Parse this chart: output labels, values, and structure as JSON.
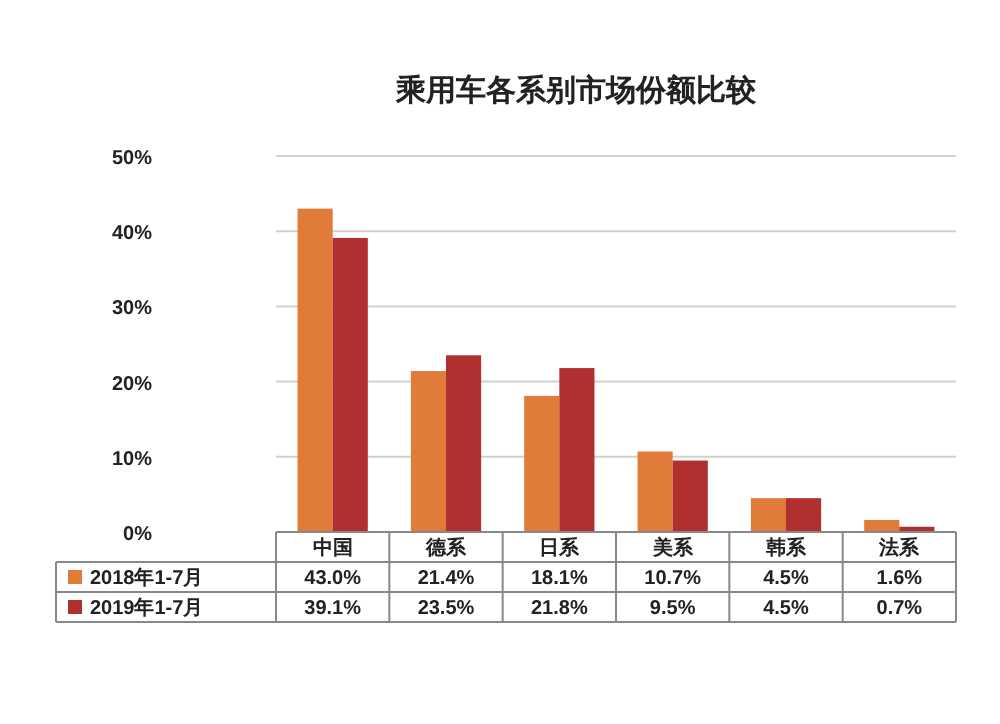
{
  "chart_data": {
    "type": "bar",
    "title": "乘用车各系别市场份额比较",
    "categories": [
      "中国",
      "德系",
      "日系",
      "美系",
      "韩系",
      "法系"
    ],
    "series": [
      {
        "name": "2018年1-7月",
        "color": "#e07b39",
        "values": [
          43.0,
          21.4,
          18.1,
          10.7,
          4.5,
          1.6
        ],
        "value_labels": [
          "43.0%",
          "21.4%",
          "18.1%",
          "10.7%",
          "4.5%",
          "1.6%"
        ]
      },
      {
        "name": "2019年1-7月",
        "color": "#b03030",
        "values": [
          39.1,
          23.5,
          21.8,
          9.5,
          4.5,
          0.7
        ],
        "value_labels": [
          "39.1%",
          "23.5%",
          "21.8%",
          "9.5%",
          "4.5%",
          "0.7%"
        ]
      }
    ],
    "ylim": [
      0,
      50
    ],
    "yticks": [
      {
        "value": 0,
        "label": "0%"
      },
      {
        "value": 10,
        "label": "10%"
      },
      {
        "value": 20,
        "label": "20%"
      },
      {
        "value": 30,
        "label": "30%"
      },
      {
        "value": 40,
        "label": "40%"
      },
      {
        "value": 50,
        "label": "50%"
      }
    ],
    "grid": "y",
    "legend": "bottom"
  }
}
